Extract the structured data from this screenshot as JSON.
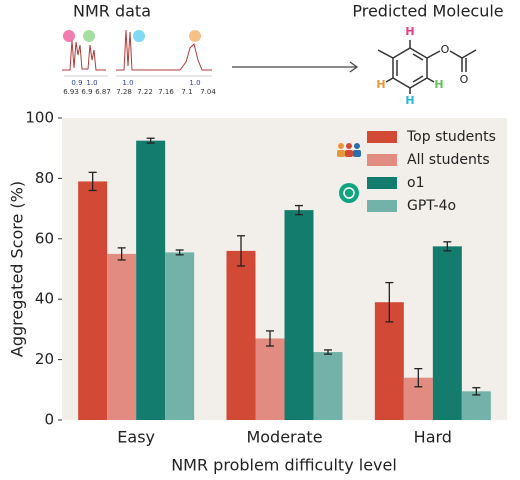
{
  "header": {
    "left_label": "NMR data",
    "right_label": "Predicted Molecule",
    "integrals": [
      "0.9",
      "1.0",
      "1.0",
      "1.0"
    ],
    "left_ticks": [
      6.93,
      6.9,
      6.87
    ],
    "right_ticks": [
      7.28,
      7.22,
      7.16,
      7.1,
      7.04
    ],
    "atoms": [
      "H",
      "H",
      "H",
      "H",
      "O",
      "O"
    ]
  },
  "chart_data": {
    "type": "bar",
    "categories": [
      "Easy",
      "Moderate",
      "Hard"
    ],
    "x_label": "NMR problem difficulty level",
    "y_label": "Aggregated Score (%)",
    "ylim": [
      0,
      100
    ],
    "yticks": [
      0,
      20,
      40,
      60,
      80,
      100
    ],
    "grid": false,
    "legend": "upper right",
    "series": [
      {
        "name": "Top students",
        "color": "#d24a36",
        "values": [
          79,
          56,
          39
        ],
        "errors": [
          3,
          5,
          6.5
        ]
      },
      {
        "name": "All students",
        "color": "#e28b80",
        "values": [
          55,
          27,
          14
        ],
        "errors": [
          2,
          2.5,
          3
        ]
      },
      {
        "name": "o1",
        "color": "#147c6d",
        "values": [
          92.5,
          69.5,
          57.5
        ],
        "errors": [
          0.8,
          1.5,
          1.5
        ]
      },
      {
        "name": "GPT-4o",
        "color": "#72b2a8",
        "values": [
          55.5,
          22.5,
          9.5
        ],
        "errors": [
          0.8,
          0.7,
          1.2
        ]
      }
    ]
  }
}
